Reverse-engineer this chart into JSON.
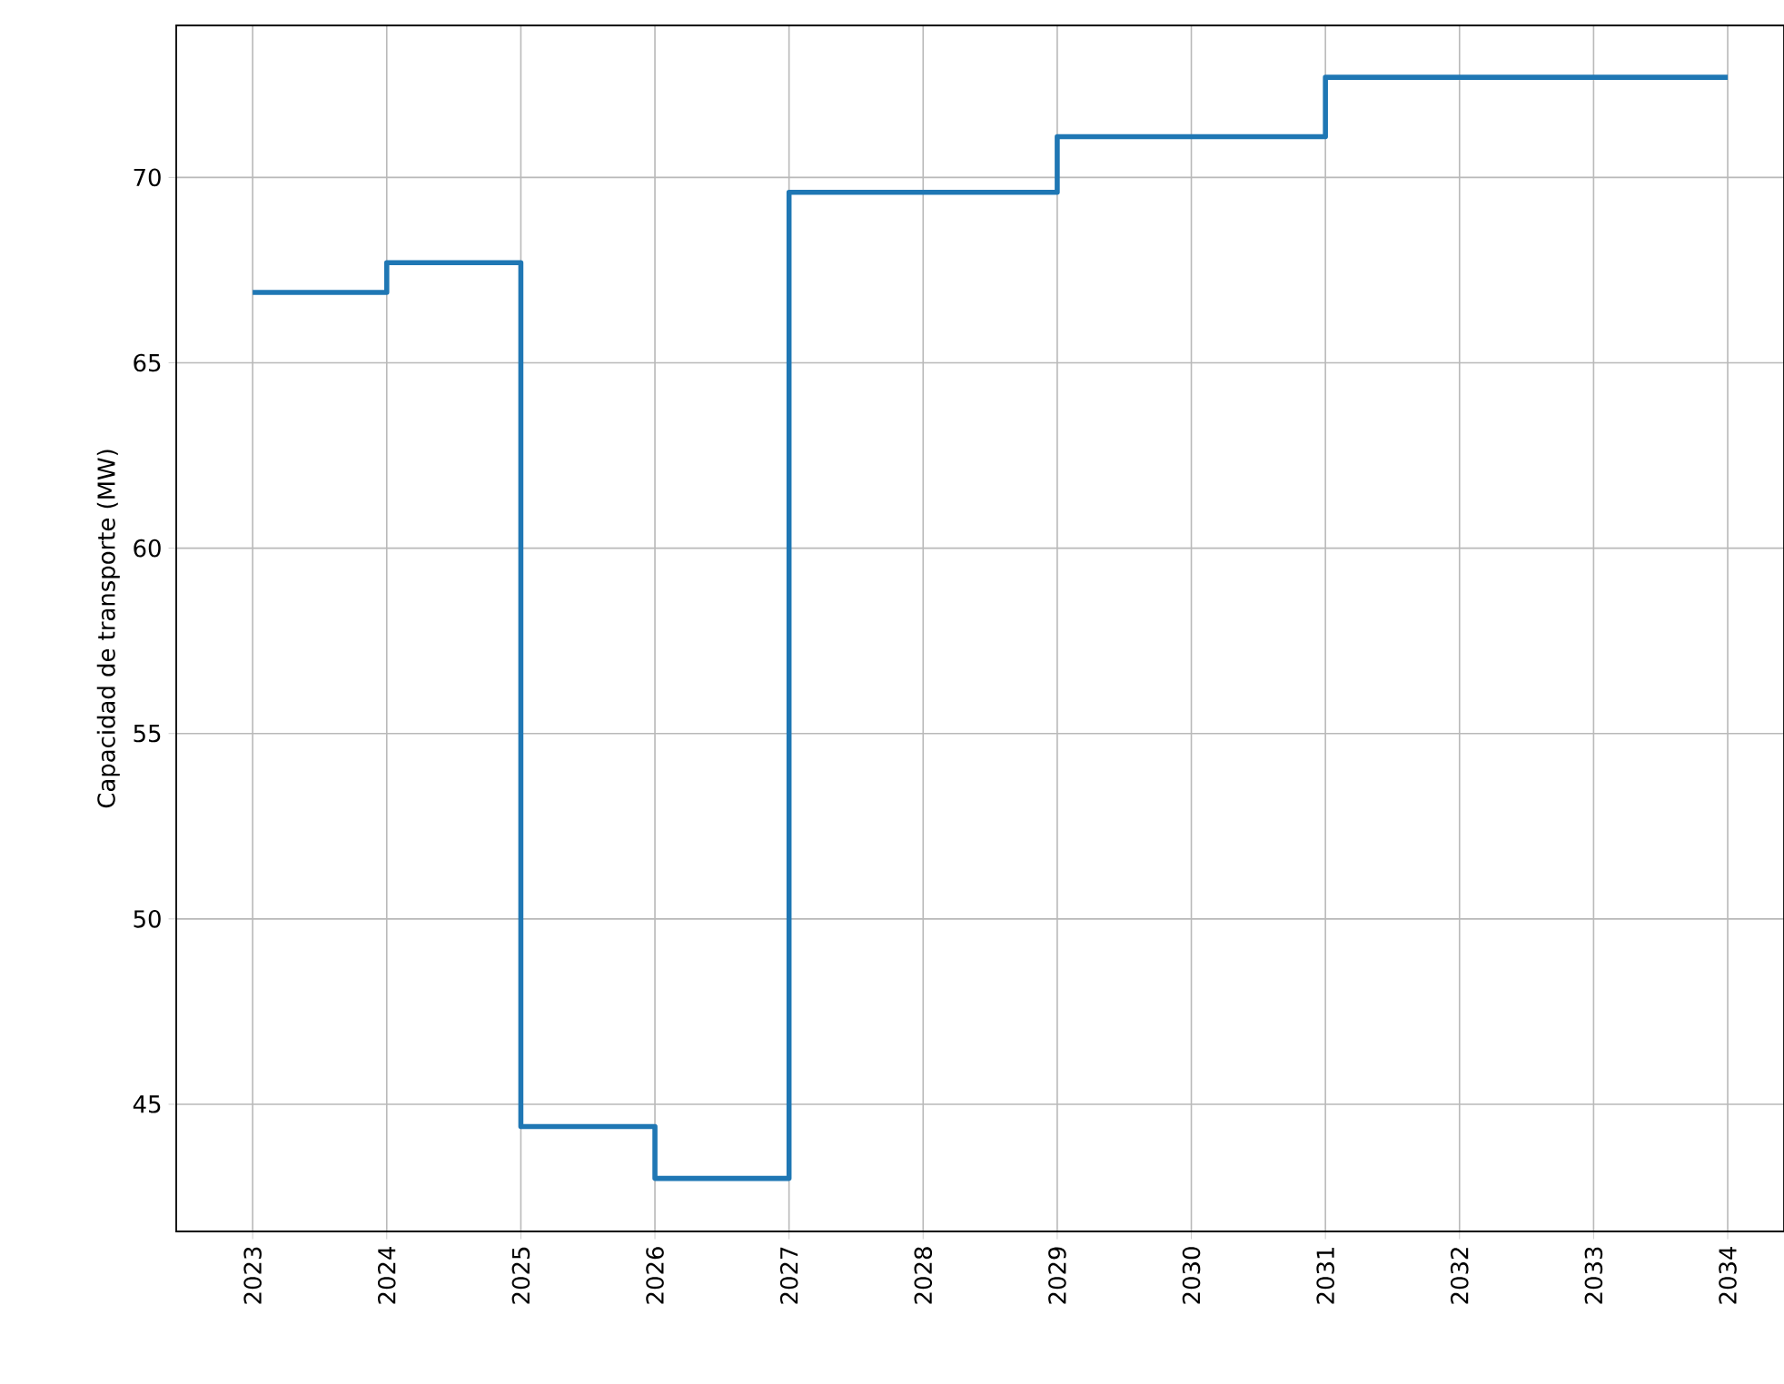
{
  "chart_data": {
    "type": "step",
    "ylabel": "Capacidad de transporte (MW)",
    "x": [
      2023,
      2024,
      2025,
      2026,
      2027,
      2028,
      2029,
      2030,
      2031,
      2032,
      2033,
      2034
    ],
    "series": [
      {
        "color": "#1f77b4",
        "values": [
          66.9,
          67.7,
          44.4,
          43.0,
          69.6,
          69.6,
          71.1,
          71.1,
          72.7,
          72.7,
          72.7,
          72.7
        ]
      }
    ],
    "xlim": [
      2022.43,
      2034.42
    ],
    "ylim": [
      41.57,
      74.1
    ],
    "xticks": [
      2023,
      2024,
      2025,
      2026,
      2027,
      2028,
      2029,
      2030,
      2031,
      2032,
      2033,
      2034
    ],
    "yticks": [
      45,
      50,
      55,
      60,
      65,
      70
    ],
    "grid": true
  }
}
